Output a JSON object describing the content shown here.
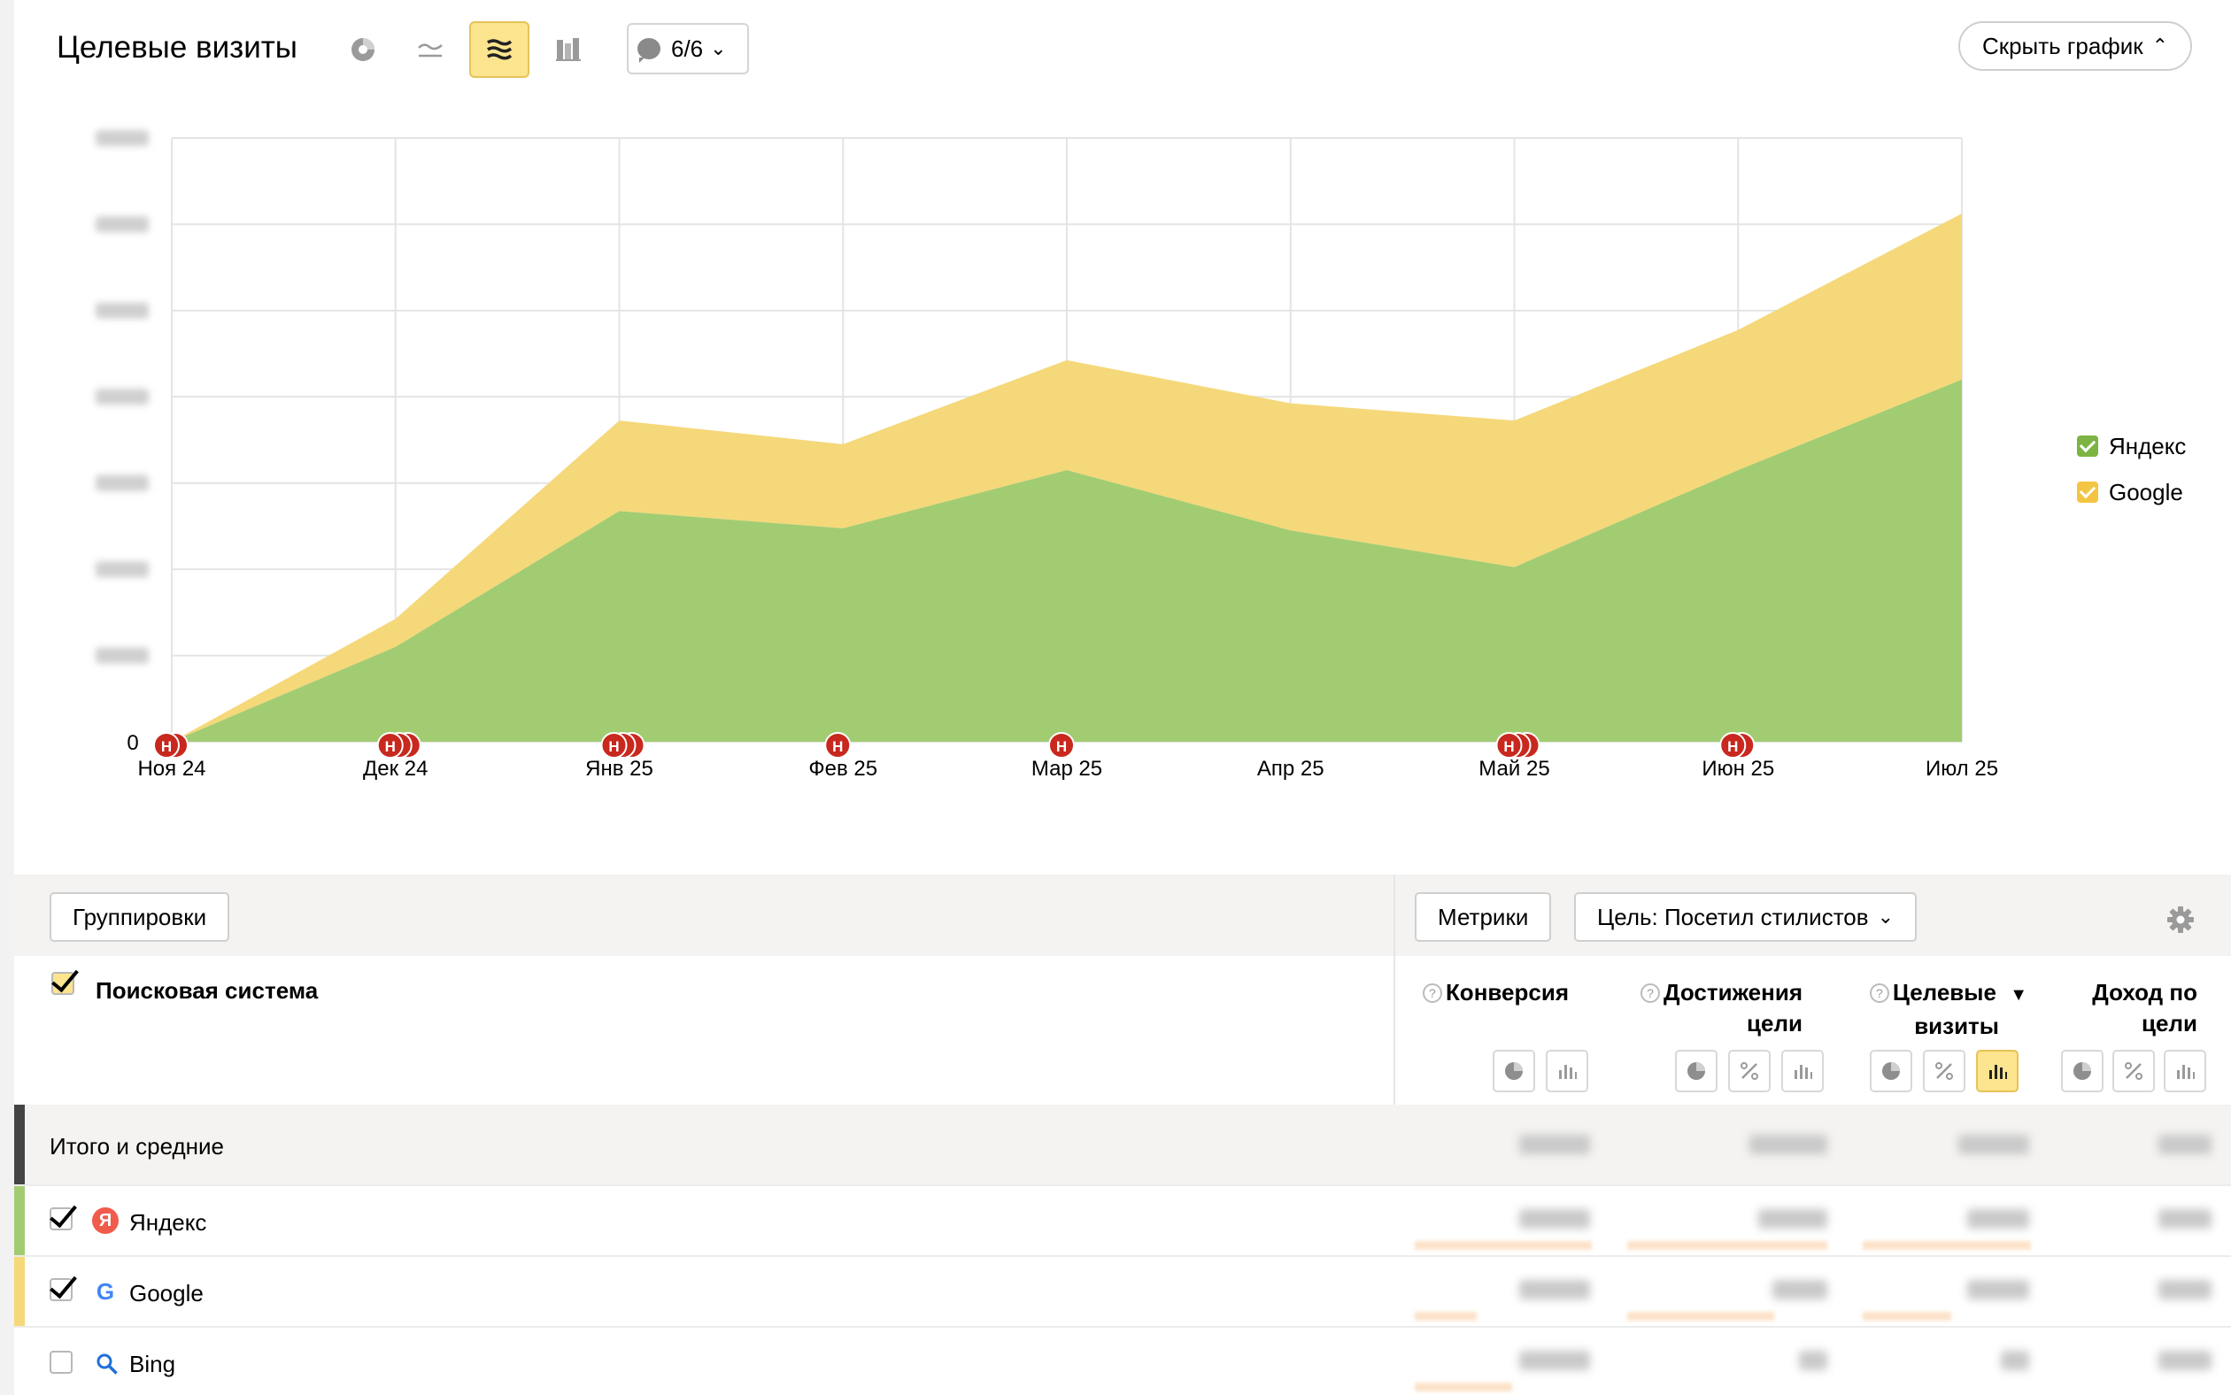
{
  "header": {
    "title": "Целевые визиты",
    "notes_count": "6/6",
    "hide_chart_label": "Скрыть график"
  },
  "chart_data": {
    "type": "area",
    "stacked": true,
    "categories": [
      "Ноя 24",
      "Дек 24",
      "Янв 25",
      "Фев 25",
      "Мар 25",
      "Апр 25",
      "Май 25",
      "Июн 25",
      "Июл 25"
    ],
    "series": [
      {
        "name": "Яндекс",
        "color": "#a2cc72",
        "values": [
          0,
          2200,
          5350,
          4950,
          6300,
          4900,
          4050,
          6300,
          8400
        ]
      },
      {
        "name": "Google",
        "color": "#f5d87a",
        "values": [
          0,
          650,
          2100,
          1950,
          2550,
          2950,
          3400,
          3250,
          3850
        ]
      }
    ],
    "ylim": [
      0,
      14000
    ],
    "y_zero_label": "0",
    "grid": true,
    "legend_position": "right",
    "note_markers": [
      {
        "category": "Ноя 24",
        "count": 2,
        "label": "Н"
      },
      {
        "category": "Дек 24",
        "count": 3,
        "label": "Н"
      },
      {
        "category": "Янв 25",
        "count": 3,
        "label": "Н"
      },
      {
        "category": "Фев 25",
        "count": 1,
        "label": "Н"
      },
      {
        "category": "Мар 25",
        "count": 1,
        "label": "Н"
      },
      {
        "category": "Май 25",
        "count": 3,
        "label": "Н"
      },
      {
        "category": "Июн 25",
        "count": 2,
        "label": "Н"
      }
    ]
  },
  "legend": {
    "items": [
      {
        "label": "Яндекс",
        "color": "#7cb342"
      },
      {
        "label": "Google",
        "color": "#f4c542"
      }
    ]
  },
  "toolbar": {
    "groupings_label": "Группировки",
    "metrics_label": "Метрики",
    "goal_label": "Цель: Посетил стилистов"
  },
  "table": {
    "dimension_header": "Поисковая система",
    "metric_headers": [
      {
        "line1": "Конверсия",
        "line2": ""
      },
      {
        "line1": "Достижения",
        "line2": "цели"
      },
      {
        "line1": "Целевые",
        "line2": "визиты"
      },
      {
        "line1": "Доход по",
        "line2": "цели"
      }
    ],
    "sort_indicator": "▼",
    "totals_label": "Итого и средние",
    "rows": [
      {
        "label": "Яндекс",
        "icon": "yandex-icon",
        "icon_glyph": "Я",
        "color": "#a2cc72",
        "checked": true
      },
      {
        "label": "Google",
        "icon": "google-icon",
        "icon_glyph": "G",
        "color": "#f5d87a",
        "checked": true
      },
      {
        "label": "Bing",
        "icon": "search-icon",
        "icon_glyph": "",
        "color": "",
        "checked": false
      }
    ]
  }
}
